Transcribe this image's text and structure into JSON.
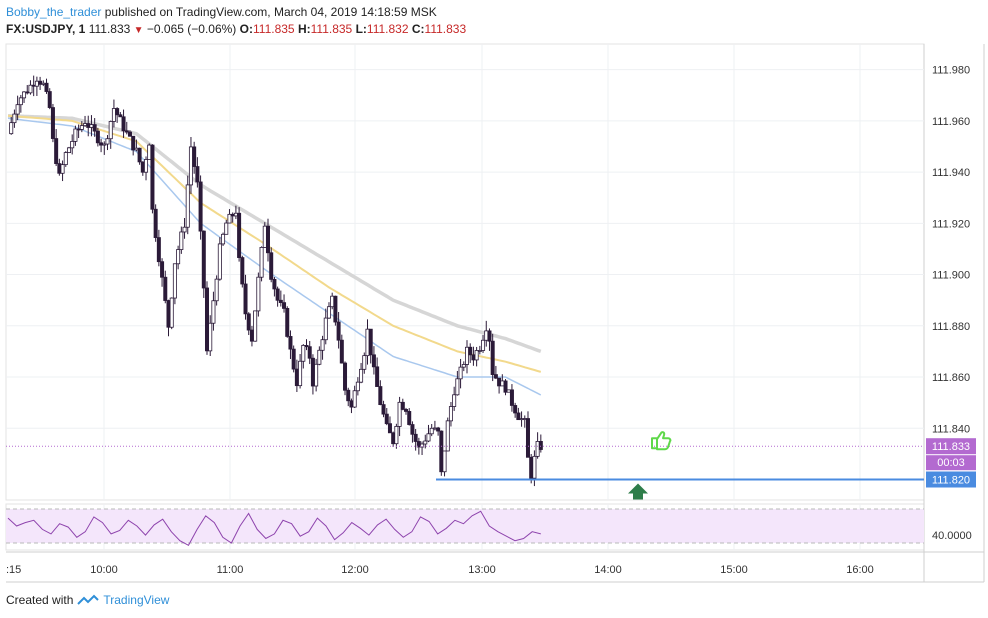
{
  "header": {
    "author": "Bobby_the_trader",
    "published_text": "published on TradingView.com, March 04, 2019 14:18:59 MSK",
    "symbol": "FX:USDJPY, 1",
    "last": "111.833",
    "change": "−0.065 (−0.06%)",
    "o_label": "O:",
    "o_value": "111.835",
    "h_label": "H:",
    "h_value": "111.835",
    "l_label": "L:",
    "l_value": "111.832",
    "c_label": "C:",
    "c_value": "111.833"
  },
  "footer": {
    "created_with": "Created with",
    "brand": "TradingView"
  },
  "colors": {
    "up_candle": "#ffffff",
    "down_candle": "#2b1a38",
    "wick": "#2b1a38",
    "ema_gray": "#d6d6d6",
    "ema_yellow": "#f2d98c",
    "ema_blue": "#a9c8ee",
    "support_line": "#4a8be0",
    "price_line": "#b36ad0",
    "rsi_line": "#8e44ad",
    "rsi_band": "#f4e6fb",
    "thumb": "#5fd84a",
    "arrow": "#2e7d4a"
  },
  "chart_data": {
    "type": "candlestick",
    "symbol": "FX:USDJPY",
    "interval": "1",
    "xlabel": "",
    "ylabel": "",
    "x_ticks": [
      ":15",
      "10:00",
      "11:00",
      "12:00",
      "13:00",
      "14:00",
      "15:00",
      "16:00"
    ],
    "y_ticks": [
      "111.980",
      "111.960",
      "111.940",
      "111.920",
      "111.900",
      "111.880",
      "111.860",
      "111.840"
    ],
    "ylim": [
      111.812,
      111.99
    ],
    "price_labels": {
      "last": "111.833",
      "countdown": "00:03",
      "support": "111.820"
    },
    "support_level": 111.82,
    "price_path": [
      [
        0,
        111.955
      ],
      [
        3,
        111.968
      ],
      [
        6,
        111.972
      ],
      [
        9,
        111.977
      ],
      [
        11,
        111.974
      ],
      [
        13,
        111.965
      ],
      [
        14,
        111.952
      ],
      [
        16,
        111.938
      ],
      [
        18,
        111.947
      ],
      [
        21,
        111.955
      ],
      [
        24,
        111.96
      ],
      [
        27,
        111.955
      ],
      [
        30,
        111.95
      ],
      [
        33,
        111.965
      ],
      [
        35,
        111.96
      ],
      [
        37,
        111.955
      ],
      [
        40,
        111.948
      ],
      [
        42,
        111.94
      ],
      [
        44,
        111.952
      ],
      [
        45,
        111.925
      ],
      [
        48,
        111.898
      ],
      [
        50,
        111.88
      ],
      [
        52,
        111.905
      ],
      [
        55,
        111.92
      ],
      [
        57,
        111.95
      ],
      [
        59,
        111.935
      ],
      [
        61,
        111.895
      ],
      [
        62,
        111.87
      ],
      [
        64,
        111.89
      ],
      [
        66,
        111.91
      ],
      [
        68,
        111.92
      ],
      [
        71,
        111.925
      ],
      [
        72,
        111.905
      ],
      [
        74,
        111.885
      ],
      [
        76,
        111.875
      ],
      [
        78,
        111.898
      ],
      [
        80,
        111.92
      ],
      [
        82,
        111.9
      ],
      [
        84,
        111.89
      ],
      [
        86,
        111.885
      ],
      [
        88,
        111.87
      ],
      [
        90,
        111.858
      ],
      [
        92,
        111.872
      ],
      [
        94,
        111.868
      ],
      [
        95,
        111.858
      ],
      [
        97,
        111.87
      ],
      [
        99,
        111.882
      ],
      [
        101,
        111.89
      ],
      [
        103,
        111.875
      ],
      [
        105,
        111.855
      ],
      [
        107,
        111.848
      ],
      [
        109,
        111.86
      ],
      [
        111,
        111.87
      ],
      [
        112,
        111.878
      ],
      [
        114,
        111.862
      ],
      [
        116,
        111.85
      ],
      [
        118,
        111.84
      ],
      [
        120,
        111.835
      ],
      [
        122,
        111.85
      ],
      [
        124,
        111.848
      ],
      [
        126,
        111.838
      ],
      [
        128,
        111.832
      ],
      [
        130,
        111.836
      ],
      [
        132,
        111.84
      ],
      [
        134,
        111.838
      ],
      [
        135,
        111.822
      ],
      [
        137,
        111.842
      ],
      [
        139,
        111.855
      ],
      [
        141,
        111.862
      ],
      [
        143,
        111.87
      ],
      [
        145,
        111.868
      ],
      [
        147,
        111.872
      ],
      [
        149,
        111.88
      ],
      [
        150,
        111.875
      ],
      [
        151,
        111.862
      ],
      [
        153,
        111.858
      ],
      [
        155,
        111.856
      ],
      [
        157,
        111.85
      ],
      [
        159,
        111.845
      ],
      [
        161,
        111.842
      ],
      [
        162,
        111.828
      ],
      [
        163,
        111.822
      ],
      [
        164,
        111.828
      ],
      [
        165,
        111.833
      ]
    ],
    "ema_gray": [
      [
        0,
        111.962
      ],
      [
        20,
        111.961
      ],
      [
        40,
        111.955
      ],
      [
        60,
        111.935
      ],
      [
        80,
        111.92
      ],
      [
        100,
        111.905
      ],
      [
        120,
        111.89
      ],
      [
        140,
        111.88
      ],
      [
        155,
        111.875
      ],
      [
        166,
        111.87
      ]
    ],
    "ema_yellow": [
      [
        0,
        111.962
      ],
      [
        20,
        111.96
      ],
      [
        40,
        111.952
      ],
      [
        60,
        111.928
      ],
      [
        80,
        111.912
      ],
      [
        100,
        111.895
      ],
      [
        120,
        111.88
      ],
      [
        140,
        111.87
      ],
      [
        155,
        111.866
      ],
      [
        166,
        111.862
      ]
    ],
    "ema_blue": [
      [
        0,
        111.961
      ],
      [
        20,
        111.958
      ],
      [
        40,
        111.948
      ],
      [
        60,
        111.92
      ],
      [
        80,
        111.902
      ],
      [
        100,
        111.885
      ],
      [
        120,
        111.868
      ],
      [
        140,
        111.86
      ],
      [
        155,
        111.86
      ],
      [
        166,
        111.853
      ]
    ],
    "rsi": {
      "y_tick": "40.0000",
      "values": [
        62,
        55,
        58,
        60,
        52,
        48,
        57,
        54,
        45,
        50,
        63,
        58,
        48,
        51,
        60,
        55,
        47,
        56,
        61,
        50,
        42,
        38,
        52,
        64,
        58,
        45,
        40,
        55,
        66,
        52,
        44,
        48,
        60,
        57,
        46,
        50,
        62,
        55,
        43,
        49,
        58,
        53,
        47,
        56,
        61,
        52,
        45,
        50,
        63,
        59,
        48,
        53,
        60,
        57,
        64,
        68,
        55,
        50,
        46,
        42,
        44,
        50,
        48
      ]
    }
  }
}
